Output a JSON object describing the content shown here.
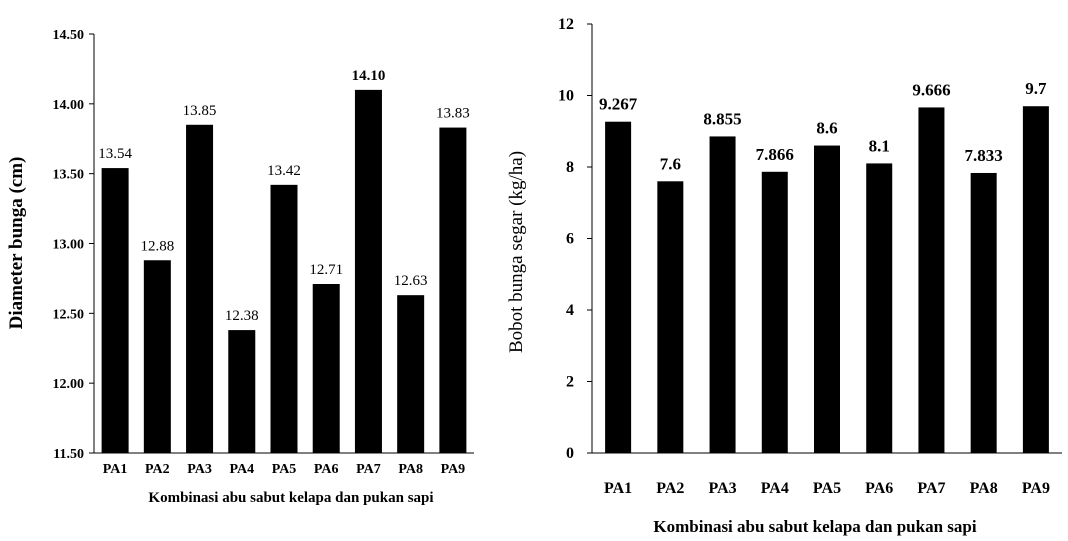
{
  "chart_data": [
    {
      "type": "bar",
      "categories": [
        "PA1",
        "PA2",
        "PA3",
        "PA4",
        "PA5",
        "PA6",
        "PA7",
        "PA8",
        "PA9"
      ],
      "values": [
        13.54,
        12.88,
        13.85,
        12.38,
        13.42,
        12.71,
        14.1,
        12.63,
        13.83
      ],
      "data_labels": [
        "13.54",
        "12.88",
        "13.85",
        "12.38",
        "13.42",
        "12.71",
        "14.10",
        "12.63",
        "13.83"
      ],
      "bold_label_index": 6,
      "ylabel": "Diameter bunga (cm)",
      "xlabel": "Kombinasi abu sabut kelapa dan pukan sapi",
      "ylim": [
        11.5,
        14.5
      ],
      "yticks": [
        "11.50",
        "12.00",
        "12.50",
        "13.00",
        "13.50",
        "14.00",
        "14.50"
      ],
      "bar_color": "#000000",
      "grid": false
    },
    {
      "type": "bar",
      "categories": [
        "PA1",
        "PA2",
        "PA3",
        "PA4",
        "PA5",
        "PA6",
        "PA7",
        "PA8",
        "PA9"
      ],
      "values": [
        9.267,
        7.6,
        8.855,
        7.866,
        8.6,
        8.1,
        9.666,
        7.833,
        9.7
      ],
      "data_labels": [
        "9.267",
        "7.6",
        "8.855",
        "7.866",
        "8.6",
        "8.1",
        "9.666",
        "7.833",
        "9.7"
      ],
      "ylabel": "Bobot bunga segar (kg/ha)",
      "xlabel": "Kombinasi abu sabut kelapa dan pukan sapi",
      "ylim": [
        0,
        12
      ],
      "yticks": [
        "0",
        "2",
        "4",
        "6",
        "8",
        "10",
        "12"
      ],
      "bar_color": "#000000",
      "grid": false
    }
  ]
}
